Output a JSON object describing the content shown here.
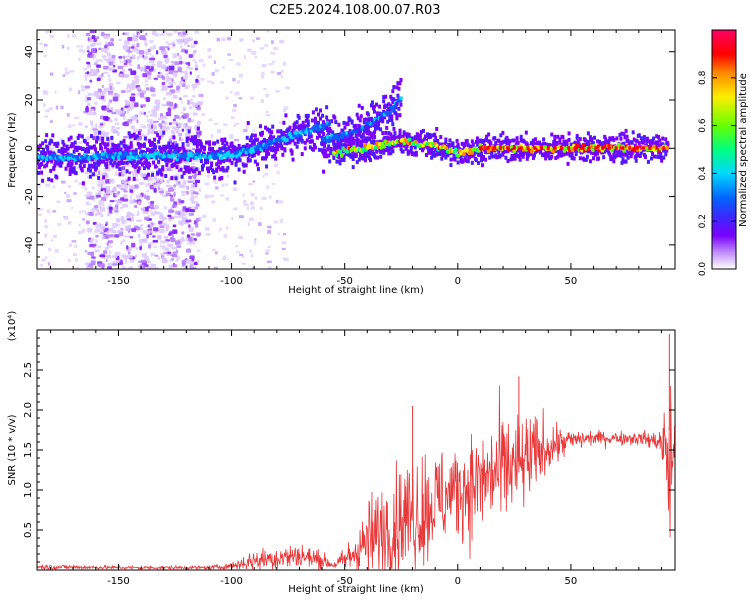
{
  "title": "C2E5.2024.108.00.07.R03",
  "colors": {
    "snr_line": "#e8393a",
    "colormap": [
      "#e8e0ff",
      "#c08cff",
      "#7a00ff",
      "#3a2aff",
      "#0066ff",
      "#00d8ff",
      "#00ff80",
      "#66ff00",
      "#ffee00",
      "#ff8a00",
      "#ff0000",
      "#ff0066"
    ]
  },
  "chart_data": [
    {
      "type": "heatmap",
      "xlabel": "Height of straight line (km)",
      "ylabel": "Frequency (Hz)",
      "xlim": [
        -186,
        96
      ],
      "ylim": [
        -50,
        49
      ],
      "xticks": [
        -150,
        -100,
        -50,
        0,
        50
      ],
      "xtick_labels": [
        "-150",
        "-100",
        "-50",
        "0",
        "50"
      ],
      "yticks": [
        -40,
        -20,
        0,
        20,
        40
      ],
      "ytick_labels": [
        "-40",
        "-20",
        "0",
        "20",
        "40"
      ],
      "colorbar": {
        "label": "Normalized spectral amplitude",
        "range": [
          0,
          1
        ],
        "ticks": [
          0.0,
          0.2,
          0.4,
          0.6,
          0.8
        ],
        "tick_labels": [
          "0.0",
          "0.2",
          "0.4",
          "0.6",
          "0.8"
        ]
      },
      "ridges": [
        {
          "name": "main",
          "points": [
            [
              -186,
              -4
            ],
            [
              -150,
              -3
            ],
            [
              -120,
              -3
            ],
            [
              -100,
              -3
            ],
            [
              -80,
              3
            ],
            [
              -60,
              9
            ],
            [
              -57,
              10
            ]
          ],
          "amplitude": 0.4
        },
        {
          "name": "upper",
          "points": [
            [
              -60,
              3
            ],
            [
              -45,
              7
            ],
            [
              -35,
              12
            ],
            [
              -25,
              20
            ]
          ],
          "amplitude": 0.35
        },
        {
          "name": "main-right",
          "points": [
            [
              -55,
              -2
            ],
            [
              -35,
              1
            ],
            [
              -25,
              3
            ],
            [
              -10,
              1
            ],
            [
              0,
              -2
            ],
            [
              10,
              0
            ],
            [
              30,
              0
            ],
            [
              50,
              0
            ],
            [
              70,
              0
            ],
            [
              93,
              0
            ]
          ],
          "amplitude": 0.75
        }
      ],
      "scatter_region": {
        "x": [
          -165,
          -115
        ],
        "y": [
          -50,
          49
        ]
      }
    },
    {
      "type": "line",
      "xlabel": "Height of straight line (km)",
      "ylabel": "SNR (10 * v/v)",
      "multiplier": "(x10⁴)",
      "xlim": [
        -186,
        96
      ],
      "ylim": [
        0,
        3.0
      ],
      "xticks": [
        -150,
        -100,
        -50,
        0,
        50
      ],
      "xtick_labels": [
        "-150",
        "-100",
        "-50",
        "0",
        "50"
      ],
      "yticks": [
        0.5,
        1.0,
        1.5,
        2.0,
        2.5
      ],
      "ytick_labels": [
        "0.5",
        "1.0",
        "1.5",
        "2.0",
        "2.5"
      ],
      "envelope": {
        "x": [
          -186,
          -150,
          -110,
          -100,
          -90,
          -70,
          -60,
          -55,
          -50,
          -40,
          -30,
          -20,
          -10,
          0,
          10,
          20,
          30,
          40,
          50,
          60,
          70,
          80,
          90,
          93,
          96
        ],
        "mean": [
          0.04,
          0.03,
          0.03,
          0.05,
          0.12,
          0.18,
          0.12,
          0.06,
          0.12,
          0.35,
          0.55,
          0.7,
          0.85,
          1.0,
          1.1,
          1.25,
          1.35,
          1.55,
          1.62,
          1.65,
          1.65,
          1.65,
          1.6,
          1.35,
          1.4
        ],
        "amp": [
          0.03,
          0.02,
          0.02,
          0.04,
          0.12,
          0.15,
          0.1,
          0.04,
          0.15,
          0.45,
          0.6,
          0.7,
          0.6,
          0.55,
          0.6,
          0.65,
          0.55,
          0.3,
          0.12,
          0.08,
          0.08,
          0.08,
          0.12,
          1.3,
          1.0
        ]
      },
      "peaks": [
        {
          "x": -20,
          "y": 2.05
        },
        {
          "x": 27,
          "y": 2.42
        },
        {
          "x": 93.5,
          "y": 2.95
        }
      ]
    }
  ]
}
